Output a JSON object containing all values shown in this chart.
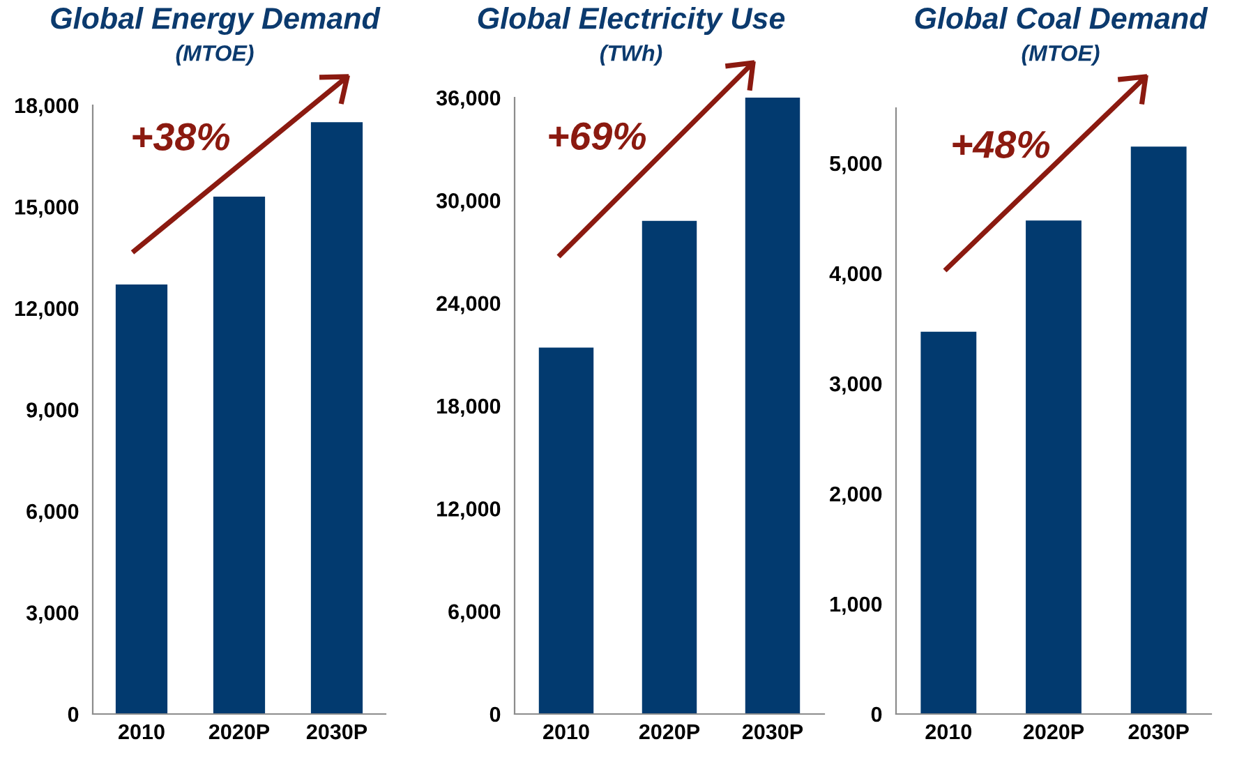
{
  "chart_data": [
    {
      "type": "bar",
      "title": "Global Energy Demand",
      "subtitle": "(MTOE)",
      "categories": [
        "2010",
        "2020P",
        "2030P"
      ],
      "values": [
        12700,
        15300,
        17500
      ],
      "color": "#023a6f",
      "ylim": [
        0,
        18000
      ],
      "yticks": [
        0,
        {
          "value": 3000,
          "label": "3,000"
        },
        {
          "value": 6000,
          "label": "6,000"
        },
        {
          "value": 9000,
          "label": "9,000"
        },
        {
          "value": 12000,
          "label": "12,000"
        },
        {
          "value": 15000,
          "label": "15,000"
        },
        {
          "value": 18000,
          "label": "18,000"
        }
      ],
      "annotations": [
        "+38%"
      ]
    },
    {
      "type": "bar",
      "title": "Global Electricity Use",
      "subtitle": "(TWh)",
      "categories": [
        "2010",
        "2020P",
        "2030P"
      ],
      "values": [
        21400,
        28800,
        36000
      ],
      "color": "#023a6f",
      "ylim": [
        0,
        36000
      ],
      "yticks": [
        0,
        {
          "value": 6000,
          "label": "6,000"
        },
        {
          "value": 12000,
          "label": "12,000"
        },
        {
          "value": 18000,
          "label": "18,000"
        },
        {
          "value": 24000,
          "label": "24,000"
        },
        {
          "value": 30000,
          "label": "30,000"
        },
        {
          "value": 36000,
          "label": "36,000"
        }
      ],
      "annotations": [
        "+69%"
      ]
    },
    {
      "type": "bar",
      "title": "Global Coal Demand",
      "subtitle": "(MTOE)",
      "categories": [
        "2010",
        "2020P",
        "2030P"
      ],
      "values": [
        3470,
        4480,
        5150
      ],
      "color": "#023a6f",
      "ylim": [
        0,
        5500
      ],
      "yticks": [
        0,
        {
          "value": 1000,
          "label": "1,000"
        },
        {
          "value": 2000,
          "label": "2,000"
        },
        {
          "value": 3000,
          "label": "3,000"
        },
        {
          "value": 4000,
          "label": "4,000"
        },
        {
          "value": 5000,
          "label": "5,000"
        }
      ],
      "annotations": [
        "+48%"
      ]
    }
  ]
}
